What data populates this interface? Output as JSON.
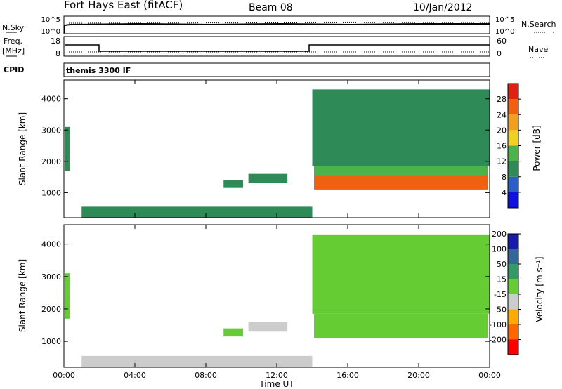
{
  "header": {
    "station": "Fort Hays East (fitACF)",
    "beam": "Beam 08",
    "date": "10/Jan/2012",
    "mode": "themis 3300 IF"
  },
  "side_labels": {
    "nsky": "N.Sky",
    "freq_line1": "Freq.",
    "freq_line2": "[MHz]",
    "cpid": "CPID",
    "nsearch": "N.Search",
    "nave": "Nave"
  },
  "noise_axis": {
    "left_ticks": [
      "10^5",
      "10^0"
    ],
    "right_ticks": [
      "10^5",
      "10^0"
    ]
  },
  "freq_axis": {
    "left_ticks": [
      "18",
      "8"
    ],
    "right_ticks": [
      "60",
      "0"
    ]
  },
  "colors": {
    "power": [
      "#1010e0",
      "#2a5fc8",
      "#2e8b57",
      "#4ab34a",
      "#f0d020",
      "#f0a020",
      "#f06010",
      "#e02010"
    ],
    "velocity": [
      "#ff0000",
      "#ff6600",
      "#ffaa00",
      "#cccccc",
      "#66cc33",
      "#339966",
      "#336699",
      "#1a1aaa"
    ]
  },
  "chart_data": [
    {
      "type": "heatmap",
      "name": "power",
      "ylabel": "Slant Range [km]",
      "y_ticks": [
        "1000",
        "2000",
        "3000",
        "4000"
      ],
      "ylim": [
        200,
        4600
      ],
      "colorbar": {
        "label": "Power [dB]",
        "ticks": [
          "4",
          "8",
          "12",
          "16",
          "20",
          "24",
          "28"
        ],
        "range": [
          0,
          32
        ]
      },
      "regions": [
        {
          "x": [
            0.05,
            0.35
          ],
          "y": [
            1700,
            3100
          ],
          "value": 10
        },
        {
          "x": [
            9.0,
            10.1
          ],
          "y": [
            1150,
            1400
          ],
          "value": 10
        },
        {
          "x": [
            10.4,
            12.6
          ],
          "y": [
            1300,
            1600
          ],
          "value": 10
        },
        {
          "x": [
            14.1,
            23.9
          ],
          "y": [
            1100,
            1600
          ],
          "value": 27
        },
        {
          "x": [
            14.1,
            23.9
          ],
          "y": [
            1550,
            1850
          ],
          "value": 15
        },
        {
          "x": [
            14.0,
            24.0
          ],
          "y": [
            1850,
            4300
          ],
          "value": 8
        },
        {
          "x": [
            1.0,
            14.0
          ],
          "y": [
            200,
            550
          ],
          "value": 8
        }
      ]
    },
    {
      "type": "heatmap",
      "name": "velocity",
      "ylabel": "Slant Range [km]",
      "xlabel": "Time UT",
      "y_ticks": [
        "1000",
        "2000",
        "3000",
        "4000"
      ],
      "x_ticks": [
        "00:00",
        "04:00",
        "08:00",
        "12:00",
        "16:00",
        "20:00",
        "00:00"
      ],
      "xlim": [
        0,
        24
      ],
      "ylim": [
        200,
        4600
      ],
      "colorbar": {
        "label": "Velocity [m s⁻¹]",
        "ticks": [
          "-200",
          "-100",
          "-50",
          "-15",
          "15",
          "50",
          "100",
          "200"
        ],
        "range": [
          -250,
          250
        ]
      },
      "regions": [
        {
          "x": [
            0.05,
            0.35
          ],
          "y": [
            1700,
            3100
          ],
          "value": 0
        },
        {
          "x": [
            9.0,
            10.1
          ],
          "y": [
            1150,
            1400
          ],
          "value": 30
        },
        {
          "x": [
            10.4,
            12.6
          ],
          "y": [
            1300,
            1600
          ],
          "value": -40
        },
        {
          "x": [
            14.1,
            23.9
          ],
          "y": [
            1100,
            1850
          ],
          "value": 0
        },
        {
          "x": [
            14.0,
            24.0
          ],
          "y": [
            1850,
            4300
          ],
          "value": 0
        },
        {
          "x": [
            1.0,
            14.0
          ],
          "y": [
            200,
            550
          ],
          "value": -40
        }
      ]
    }
  ]
}
